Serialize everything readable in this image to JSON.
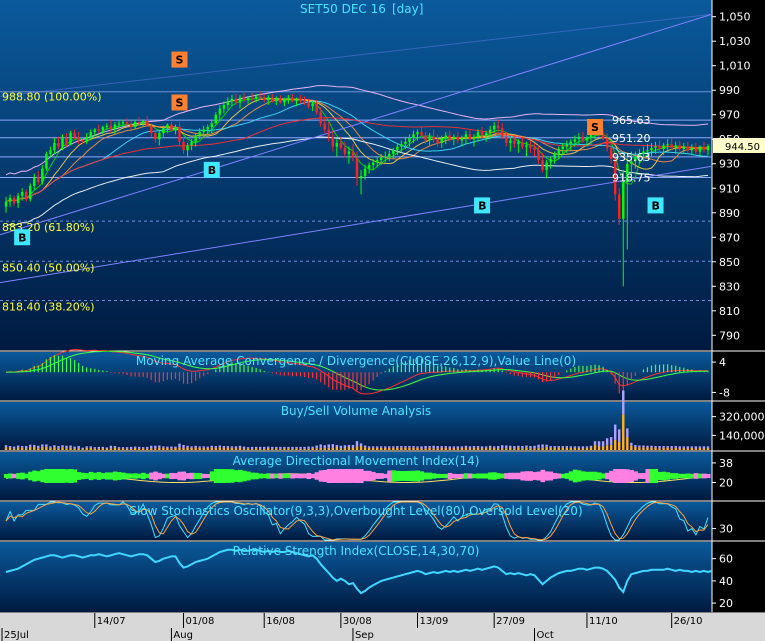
{
  "chart_data": [
    {
      "type": "candlestick",
      "title": "SET50 DEC 16",
      "interval": "[day]",
      "yticks": [
        790,
        810,
        830,
        850,
        870,
        890,
        910,
        930,
        950,
        970,
        990,
        1010,
        1030,
        1050
      ],
      "ytick_labels": [
        "790",
        "810",
        "830",
        "850",
        "870",
        "890",
        "910",
        "930",
        "950",
        "970",
        "990",
        "1,010",
        "1,030",
        "1,050"
      ],
      "ylim": [
        778,
        1062
      ],
      "last_price": "944.50",
      "fib_levels": [
        {
          "label": "988.80 (100.00%)",
          "value": 988.8
        },
        {
          "label": "883.20 (61.80%)",
          "value": 883.2
        },
        {
          "label": "850.40 (50.00%)",
          "value": 850.4
        },
        {
          "label": "818.40 (38.20%)",
          "value": 818.4
        }
      ],
      "price_annotations": [
        {
          "label": "965.63",
          "value": 965.63
        },
        {
          "label": "951.20",
          "value": 951.2
        },
        {
          "label": "935.63",
          "value": 935.63
        },
        {
          "label": "918.75",
          "value": 918.75
        }
      ],
      "signals": [
        {
          "label": "S",
          "bar": 43,
          "value": 1015
        },
        {
          "label": "S",
          "bar": 43,
          "value": 980
        },
        {
          "label": "B",
          "bar": 51,
          "value": 925
        },
        {
          "label": "B",
          "bar": 4,
          "value": 870
        },
        {
          "label": "B",
          "bar": 118,
          "value": 896
        },
        {
          "label": "S",
          "bar": 146,
          "value": 960
        },
        {
          "label": "B",
          "bar": 161,
          "value": 896
        }
      ],
      "candles": [
        [
          895,
          903,
          890,
          899
        ],
        [
          899,
          905,
          895,
          902
        ],
        [
          902,
          904,
          896,
          898
        ],
        [
          898,
          906,
          894,
          904
        ],
        [
          904,
          910,
          900,
          907
        ],
        [
          907,
          909,
          899,
          901
        ],
        [
          901,
          914,
          899,
          912
        ],
        [
          912,
          922,
          908,
          919
        ],
        [
          919,
          924,
          913,
          915
        ],
        [
          915,
          929,
          913,
          926
        ],
        [
          926,
          940,
          924,
          938
        ],
        [
          938,
          944,
          935,
          941
        ],
        [
          941,
          951,
          938,
          947
        ],
        [
          947,
          952,
          942,
          944
        ],
        [
          944,
          954,
          941,
          951
        ],
        [
          951,
          955,
          944,
          946
        ],
        [
          946,
          957,
          945,
          955
        ],
        [
          955,
          958,
          950,
          952
        ],
        [
          952,
          956,
          946,
          949
        ],
        [
          949,
          950,
          946,
          948
        ],
        [
          948,
          955,
          946,
          952
        ],
        [
          952,
          958,
          949,
          956
        ],
        [
          956,
          959,
          953,
          958
        ],
        [
          958,
          962,
          955,
          957
        ],
        [
          957,
          961,
          954,
          960
        ],
        [
          960,
          963,
          958,
          961
        ],
        [
          961,
          966,
          955,
          958
        ],
        [
          958,
          964,
          954,
          962
        ],
        [
          962,
          965,
          959,
          963
        ],
        [
          963,
          966,
          960,
          964
        ],
        [
          964,
          967,
          961,
          962
        ],
        [
          962,
          965,
          958,
          960
        ],
        [
          960,
          966,
          958,
          964
        ],
        [
          964,
          968,
          961,
          963
        ],
        [
          963,
          966,
          960,
          965
        ],
        [
          965,
          969,
          962,
          961
        ],
        [
          961,
          963,
          952,
          955
        ],
        [
          955,
          958,
          947,
          950
        ],
        [
          950,
          957,
          945,
          955
        ],
        [
          955,
          961,
          952,
          959
        ],
        [
          959,
          963,
          955,
          962
        ],
        [
          962,
          964,
          956,
          957
        ],
        [
          957,
          962,
          954,
          960
        ],
        [
          960,
          964,
          945,
          948
        ],
        [
          948,
          952,
          938,
          941
        ],
        [
          941,
          947,
          936,
          945
        ],
        [
          945,
          950,
          941,
          948
        ],
        [
          948,
          955,
          944,
          953
        ],
        [
          953,
          959,
          950,
          956
        ],
        [
          956,
          961,
          952,
          958
        ],
        [
          958,
          962,
          954,
          960
        ],
        [
          960,
          966,
          955,
          963
        ],
        [
          963,
          972,
          962,
          970
        ],
        [
          970,
          978,
          966,
          975
        ],
        [
          975,
          981,
          971,
          978
        ],
        [
          978,
          984,
          974,
          981
        ],
        [
          981,
          986,
          977,
          983
        ],
        [
          983,
          987,
          978,
          980
        ],
        [
          980,
          986,
          975,
          984
        ],
        [
          984,
          988,
          980,
          982
        ],
        [
          982,
          985,
          979,
          984
        ],
        [
          984,
          988,
          981,
          983
        ],
        [
          983,
          987,
          980,
          985
        ],
        [
          985,
          989,
          982,
          984
        ],
        [
          984,
          987,
          980,
          982
        ],
        [
          982,
          986,
          978,
          984
        ],
        [
          984,
          987,
          980,
          981
        ],
        [
          981,
          985,
          978,
          983
        ],
        [
          983,
          986,
          979,
          980
        ],
        [
          980,
          984,
          977,
          982
        ],
        [
          982,
          986,
          979,
          984
        ],
        [
          984,
          987,
          980,
          981
        ],
        [
          981,
          984,
          977,
          983
        ],
        [
          983,
          986,
          979,
          982
        ],
        [
          982,
          985,
          978,
          980
        ],
        [
          980,
          983,
          975,
          977
        ],
        [
          977,
          981,
          973,
          979
        ],
        [
          979,
          982,
          970,
          972
        ],
        [
          972,
          976,
          960,
          963
        ],
        [
          963,
          968,
          955,
          958
        ],
        [
          958,
          964,
          948,
          952
        ],
        [
          952,
          957,
          940,
          944
        ],
        [
          944,
          950,
          936,
          947
        ],
        [
          947,
          952,
          941,
          943
        ],
        [
          943,
          948,
          935,
          938
        ],
        [
          938,
          944,
          930,
          940
        ],
        [
          940,
          946,
          932,
          935
        ],
        [
          935,
          940,
          912,
          918
        ],
        [
          918,
          925,
          905,
          920
        ],
        [
          920,
          929,
          917,
          926
        ],
        [
          926,
          931,
          922,
          929
        ],
        [
          929,
          934,
          925,
          931
        ],
        [
          931,
          936,
          927,
          933
        ],
        [
          933,
          938,
          929,
          935
        ],
        [
          935,
          940,
          931,
          936
        ],
        [
          936,
          941,
          932,
          938
        ],
        [
          938,
          943,
          934,
          941
        ],
        [
          941,
          947,
          937,
          944
        ],
        [
          944,
          949,
          939,
          946
        ],
        [
          946,
          952,
          942,
          948
        ],
        [
          948,
          954,
          944,
          951
        ],
        [
          951,
          957,
          947,
          954
        ],
        [
          954,
          958,
          949,
          956
        ],
        [
          956,
          960,
          951,
          953
        ],
        [
          953,
          956,
          946,
          949
        ],
        [
          949,
          955,
          945,
          952
        ],
        [
          952,
          958,
          947,
          950
        ],
        [
          950,
          954,
          944,
          947
        ],
        [
          947,
          953,
          943,
          951
        ],
        [
          951,
          956,
          946,
          953
        ],
        [
          953,
          957,
          948,
          950
        ],
        [
          950,
          954,
          945,
          952
        ],
        [
          952,
          956,
          947,
          949
        ],
        [
          949,
          953,
          944,
          951
        ],
        [
          951,
          957,
          946,
          954
        ],
        [
          954,
          958,
          949,
          950
        ],
        [
          950,
          954,
          944,
          952
        ],
        [
          952,
          958,
          948,
          956
        ],
        [
          956,
          960,
          951,
          953
        ],
        [
          953,
          957,
          948,
          955
        ],
        [
          955,
          961,
          950,
          958
        ],
        [
          958,
          964,
          955,
          961
        ],
        [
          961,
          966,
          956,
          959
        ],
        [
          959,
          963,
          950,
          952
        ],
        [
          952,
          956,
          944,
          947
        ],
        [
          947,
          951,
          940,
          949
        ],
        [
          949,
          953,
          943,
          946
        ],
        [
          946,
          950,
          939,
          948
        ],
        [
          948,
          952,
          942,
          944
        ],
        [
          944,
          948,
          936,
          945
        ],
        [
          945,
          949,
          939,
          943
        ],
        [
          943,
          947,
          936,
          941
        ],
        [
          941,
          945,
          930,
          933
        ],
        [
          933,
          939,
          923,
          925
        ],
        [
          925,
          933,
          918,
          931
        ],
        [
          931,
          936,
          926,
          934
        ],
        [
          934,
          940,
          930,
          938
        ],
        [
          938,
          944,
          934,
          942
        ],
        [
          942,
          947,
          937,
          944
        ],
        [
          944,
          949,
          939,
          946
        ],
        [
          946,
          950,
          941,
          948
        ],
        [
          948,
          953,
          944,
          950
        ],
        [
          950,
          955,
          946,
          952
        ],
        [
          952,
          956,
          947,
          949
        ],
        [
          949,
          953,
          944,
          951
        ],
        [
          951,
          957,
          946,
          955
        ],
        [
          955,
          960,
          950,
          957
        ],
        [
          957,
          962,
          952,
          955
        ],
        [
          955,
          959,
          949,
          951
        ],
        [
          951,
          955,
          940,
          943
        ],
        [
          943,
          947,
          930,
          934
        ],
        [
          934,
          938,
          900,
          905
        ],
        [
          905,
          910,
          880,
          885
        ],
        [
          885,
          925,
          830,
          915
        ],
        [
          915,
          935,
          860,
          930
        ],
        [
          930,
          940,
          918,
          932
        ],
        [
          932,
          940,
          926,
          936
        ],
        [
          936,
          942,
          930,
          938
        ],
        [
          938,
          944,
          932,
          940
        ],
        [
          940,
          946,
          935,
          941
        ],
        [
          941,
          947,
          936,
          943
        ],
        [
          943,
          948,
          938,
          944
        ],
        [
          944,
          949,
          939,
          942
        ],
        [
          942,
          947,
          937,
          945
        ],
        [
          945,
          950,
          940,
          946
        ],
        [
          946,
          951,
          941,
          943
        ],
        [
          943,
          948,
          938,
          945
        ],
        [
          945,
          949,
          940,
          942
        ],
        [
          942,
          947,
          938,
          944
        ],
        [
          944,
          948,
          939,
          941
        ],
        [
          941,
          946,
          937,
          943
        ],
        [
          943,
          947,
          938,
          940
        ],
        [
          940,
          945,
          936,
          944
        ],
        [
          944,
          948,
          939,
          941
        ],
        [
          941,
          946,
          937,
          944.5
        ]
      ]
    },
    {
      "type": "area",
      "title": "Moving Average Convergence / Divergence(CLOSE,26,12,9),Value Line(0)",
      "yticks": [
        4,
        -8
      ],
      "ytick_labels": [
        "4",
        "-8"
      ],
      "ylim": [
        -11,
        8
      ]
    },
    {
      "type": "bar",
      "title": "Buy/Sell Volume Analysis",
      "yticks": [
        140000,
        320000
      ],
      "ytick_labels": [
        "140,000",
        "320,000"
      ],
      "ylim": [
        0,
        460000
      ]
    },
    {
      "type": "area",
      "title": "Average Directional Movement Index(14)",
      "yticks": [
        20,
        38
      ],
      "ytick_labels": [
        "20",
        "38"
      ],
      "ylim": [
        4,
        48
      ]
    },
    {
      "type": "line",
      "title": "Slow Stochastics Oscillator(9,3,3),Overbought Level(80),Oversold Level(20)",
      "yticks": [
        30
      ],
      "ytick_labels": [
        "30"
      ],
      "ylim": [
        0,
        100
      ]
    },
    {
      "type": "line",
      "title": "Relative Strength Index(CLOSE,14,30,70)",
      "yticks": [
        20,
        40,
        60
      ],
      "ytick_labels": [
        "20",
        "40",
        "60"
      ],
      "ylim": [
        12,
        75
      ],
      "values": [
        48,
        49,
        50,
        51,
        53,
        55,
        57,
        59,
        60,
        61,
        62,
        63,
        63,
        62,
        61,
        62,
        63,
        63,
        62,
        61,
        62,
        63,
        63,
        64,
        63,
        62,
        63,
        64,
        65,
        64,
        63,
        62,
        63,
        64,
        64,
        63,
        60,
        57,
        58,
        60,
        61,
        62,
        62,
        56,
        52,
        53,
        55,
        57,
        58,
        59,
        60,
        62,
        64,
        66,
        67,
        68,
        68,
        67,
        68,
        67,
        67,
        68,
        68,
        67,
        66,
        67,
        66,
        67,
        66,
        66,
        67,
        66,
        65,
        64,
        63,
        62,
        63,
        60,
        55,
        51,
        47,
        43,
        40,
        42,
        40,
        37,
        38,
        33,
        29,
        31,
        34,
        36,
        38,
        40,
        41,
        42,
        43,
        44,
        45,
        46,
        47,
        48,
        49,
        48,
        46,
        47,
        48,
        47,
        48,
        49,
        48,
        49,
        48,
        49,
        50,
        49,
        50,
        51,
        50,
        51,
        52,
        53,
        52,
        49,
        46,
        47,
        46,
        47,
        46,
        45,
        46,
        45,
        41,
        37,
        40,
        43,
        45,
        47,
        48,
        49,
        49,
        50,
        51,
        51,
        50,
        51,
        52,
        52,
        51,
        49,
        45,
        41,
        34,
        30,
        40,
        46,
        47,
        48,
        49,
        49,
        50,
        50,
        50,
        50,
        51,
        50,
        49,
        50,
        49,
        49,
        48,
        49,
        48,
        49,
        48,
        49
      ]
    }
  ],
  "x_axis": {
    "dates": [
      "14/07",
      "01/08",
      "16/08",
      "30/08",
      "13/09",
      "27/09",
      "11/10",
      "26/10"
    ],
    "months": [
      "25Jul",
      "Aug",
      "Sep",
      "Oct"
    ]
  },
  "colors": {
    "up": "#00ff00",
    "down": "#ff2222",
    "fib": "#ffff33",
    "label": "#4fe3ff"
  }
}
